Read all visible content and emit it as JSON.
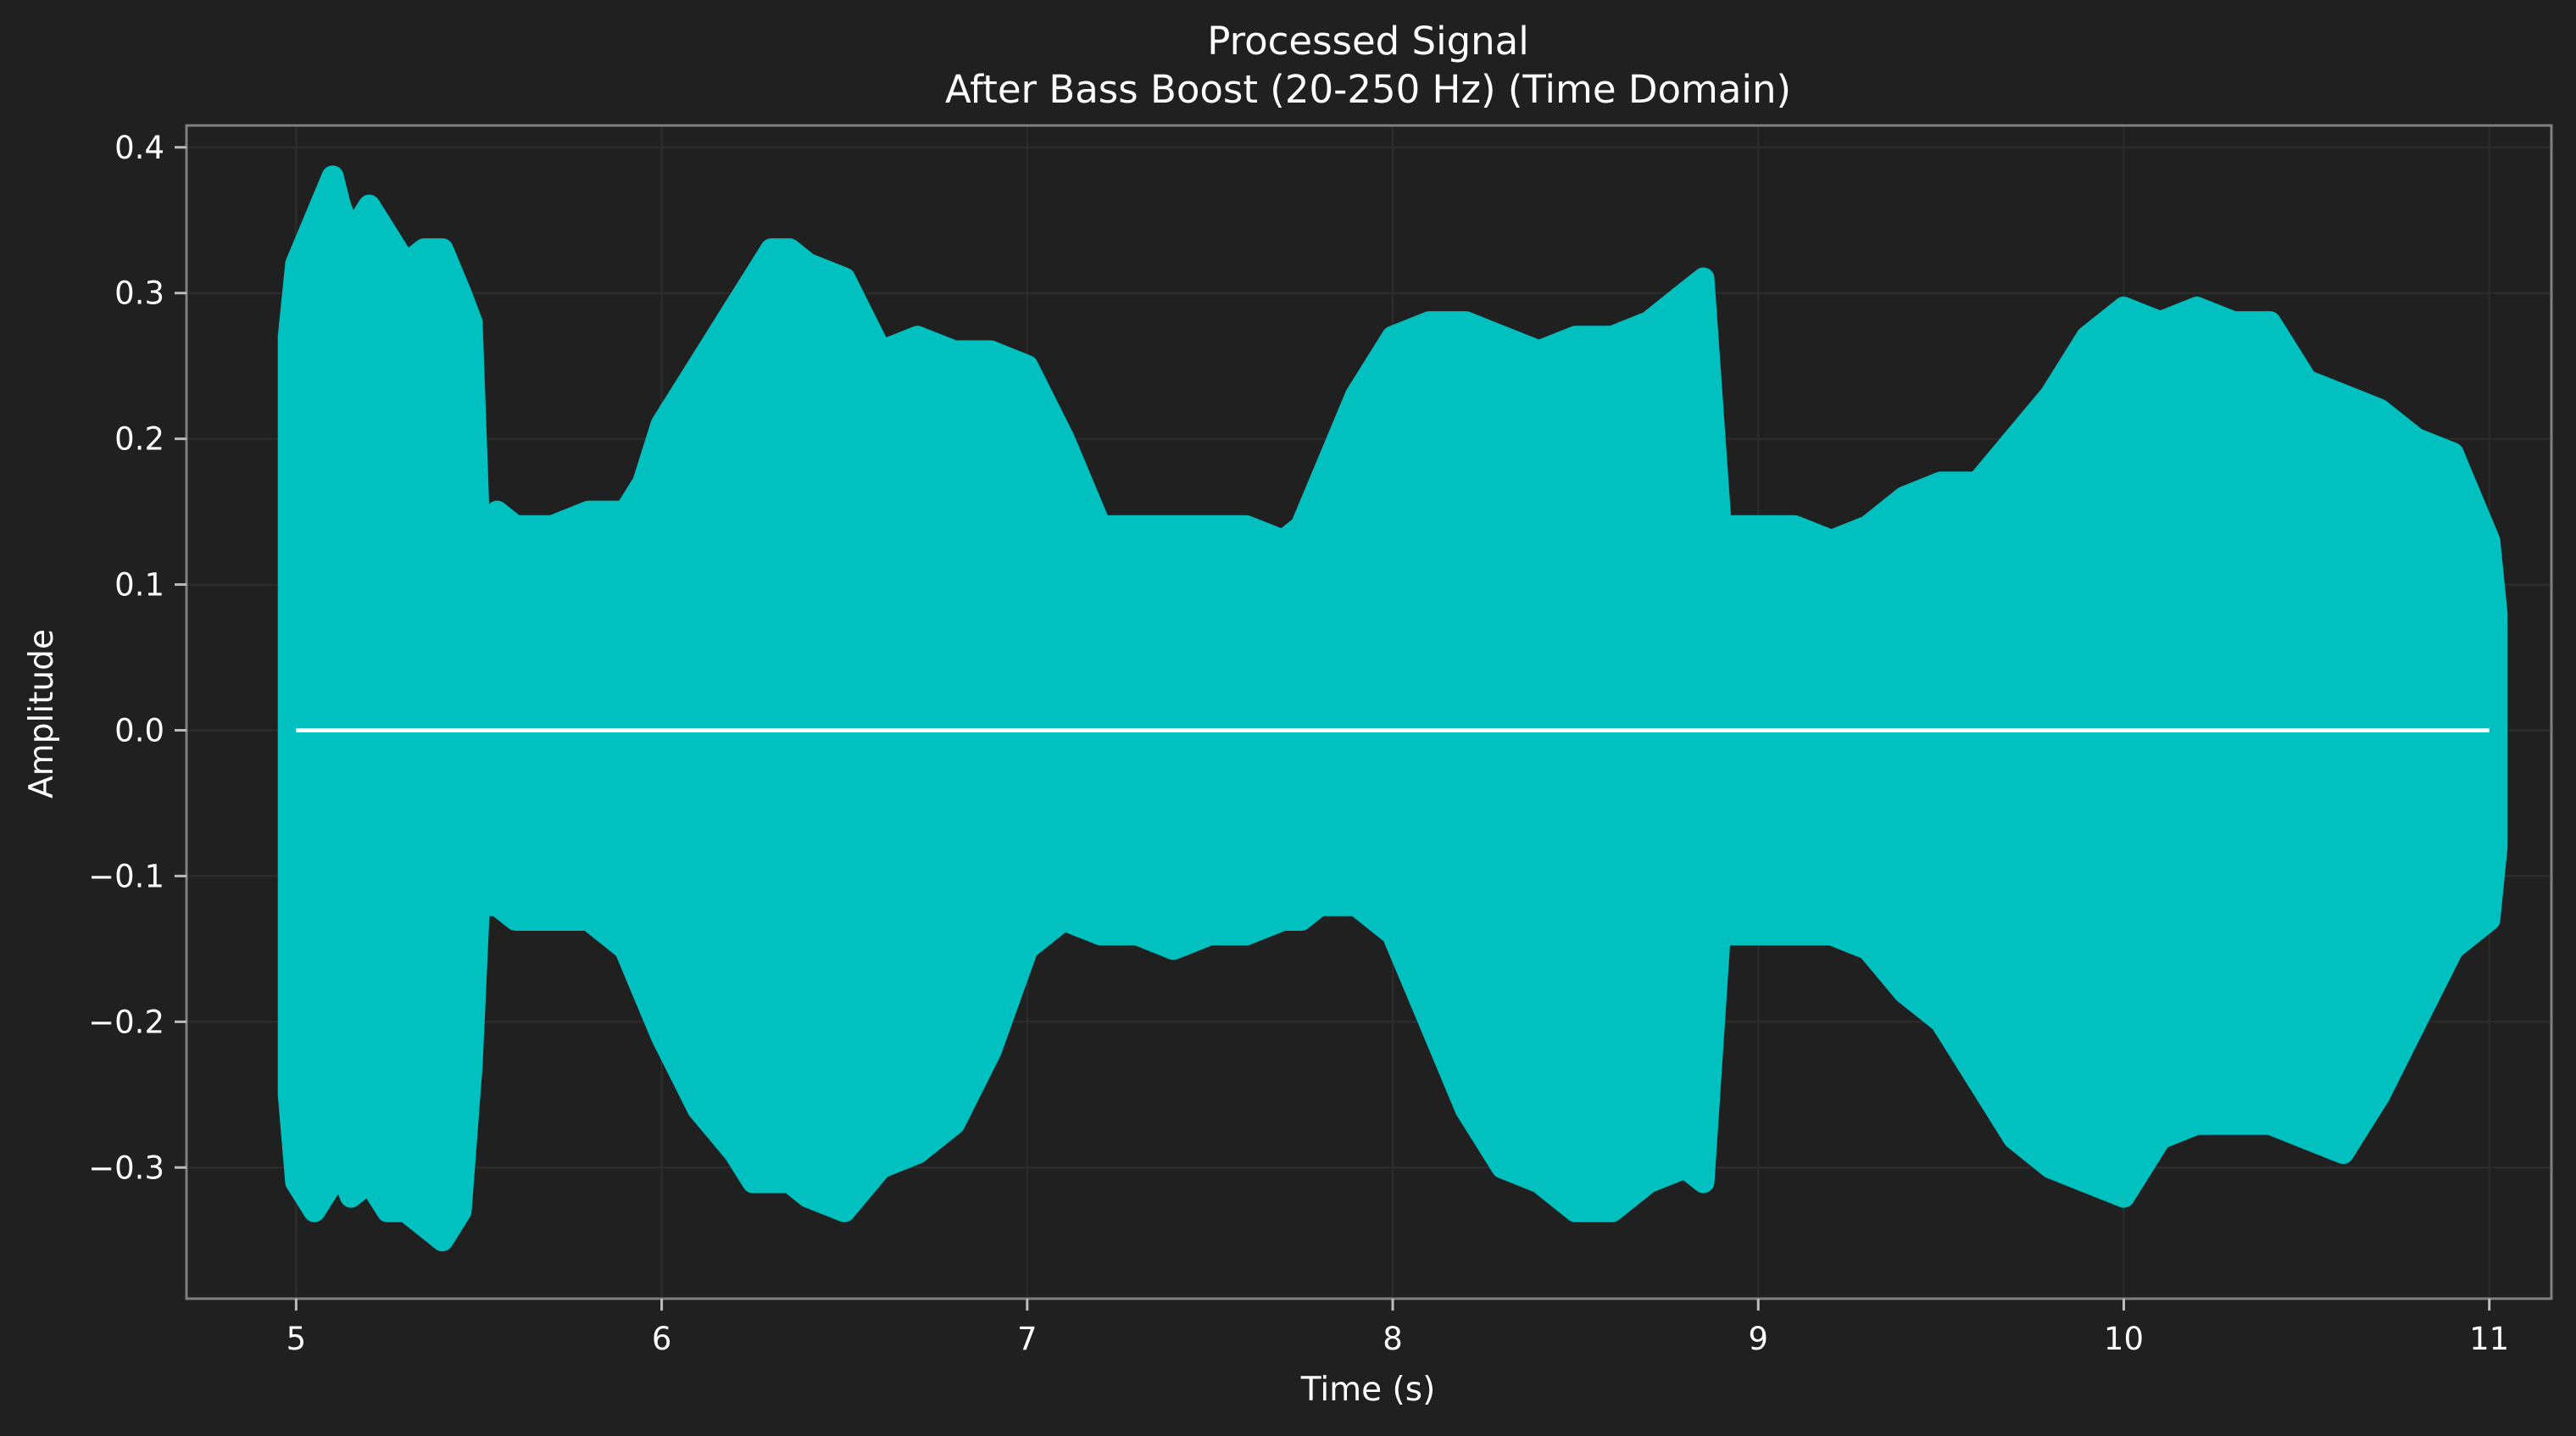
{
  "colors": {
    "background": "#202020",
    "frame": "#7f7f7f",
    "signal": "#00c0c0",
    "mean_line": "#ffffff",
    "text": "#ffffff"
  },
  "chart_data": {
    "type": "line",
    "title": "Processed Signal",
    "subtitle": "After Bass Boost (20-250 Hz) (Time Domain)",
    "xlabel": "Time (s)",
    "ylabel": "Amplitude",
    "xlim": [
      4.7,
      11.17
    ],
    "ylim": [
      -0.39,
      0.415
    ],
    "xticks": [
      5,
      6,
      7,
      8,
      9,
      10,
      11
    ],
    "xtick_labels": [
      "5",
      "6",
      "7",
      "8",
      "9",
      "10",
      "11"
    ],
    "yticks": [
      -0.3,
      -0.2,
      -0.1,
      0.0,
      0.1,
      0.2,
      0.3,
      0.4
    ],
    "ytick_labels": [
      "−0.3",
      "−0.2",
      "−0.1",
      "0.0",
      "0.1",
      "0.2",
      "0.3",
      "0.4"
    ],
    "grid": true,
    "series": [
      {
        "style": "envelope",
        "x": [
          4.98,
          5.0,
          5.05,
          5.1,
          5.12,
          5.15,
          5.2,
          5.25,
          5.3,
          5.35,
          5.4,
          5.45,
          5.48,
          5.5,
          5.55,
          5.6,
          5.7,
          5.8,
          5.9,
          5.95,
          6.0,
          6.1,
          6.2,
          6.25,
          6.3,
          6.35,
          6.4,
          6.5,
          6.6,
          6.7,
          6.8,
          6.9,
          7.0,
          7.1,
          7.2,
          7.3,
          7.4,
          7.5,
          7.6,
          7.7,
          7.75,
          7.8,
          7.9,
          8.0,
          8.1,
          8.2,
          8.3,
          8.4,
          8.5,
          8.6,
          8.7,
          8.8,
          8.85,
          8.9,
          8.92,
          9.0,
          9.1,
          9.2,
          9.3,
          9.4,
          9.5,
          9.6,
          9.7,
          9.8,
          9.9,
          10.0,
          10.1,
          10.2,
          10.3,
          10.4,
          10.5,
          10.6,
          10.7,
          10.8,
          10.9,
          11.0,
          11.02
        ],
        "upper": [
          0.27,
          0.32,
          0.35,
          0.38,
          0.36,
          0.34,
          0.36,
          0.34,
          0.32,
          0.33,
          0.33,
          0.3,
          0.28,
          0.14,
          0.15,
          0.14,
          0.14,
          0.15,
          0.15,
          0.17,
          0.21,
          0.25,
          0.29,
          0.31,
          0.33,
          0.33,
          0.32,
          0.31,
          0.26,
          0.27,
          0.26,
          0.26,
          0.25,
          0.2,
          0.14,
          0.14,
          0.14,
          0.14,
          0.14,
          0.13,
          0.14,
          0.17,
          0.23,
          0.27,
          0.28,
          0.28,
          0.27,
          0.26,
          0.27,
          0.27,
          0.28,
          0.3,
          0.31,
          0.13,
          0.14,
          0.14,
          0.14,
          0.13,
          0.14,
          0.16,
          0.17,
          0.17,
          0.2,
          0.23,
          0.27,
          0.29,
          0.28,
          0.29,
          0.28,
          0.28,
          0.24,
          0.23,
          0.22,
          0.2,
          0.19,
          0.13,
          0.08
        ],
        "lower": [
          -0.25,
          -0.31,
          -0.33,
          -0.31,
          -0.3,
          -0.32,
          -0.31,
          -0.33,
          -0.33,
          -0.34,
          -0.35,
          -0.33,
          -0.23,
          -0.12,
          -0.12,
          -0.13,
          -0.13,
          -0.13,
          -0.15,
          -0.18,
          -0.21,
          -0.26,
          -0.29,
          -0.31,
          -0.31,
          -0.31,
          -0.32,
          -0.33,
          -0.3,
          -0.29,
          -0.27,
          -0.22,
          -0.15,
          -0.13,
          -0.14,
          -0.14,
          -0.15,
          -0.14,
          -0.14,
          -0.13,
          -0.13,
          -0.12,
          -0.12,
          -0.14,
          -0.2,
          -0.26,
          -0.3,
          -0.31,
          -0.33,
          -0.33,
          -0.31,
          -0.3,
          -0.31,
          -0.12,
          -0.14,
          -0.14,
          -0.14,
          -0.14,
          -0.15,
          -0.18,
          -0.2,
          -0.24,
          -0.28,
          -0.3,
          -0.31,
          -0.32,
          -0.28,
          -0.27,
          -0.27,
          -0.27,
          -0.28,
          -0.29,
          -0.25,
          -0.2,
          -0.15,
          -0.13,
          -0.08
        ]
      },
      {
        "style": "line",
        "x": [
          5.0,
          11.0
        ],
        "y": [
          0.0,
          0.0
        ]
      }
    ]
  }
}
